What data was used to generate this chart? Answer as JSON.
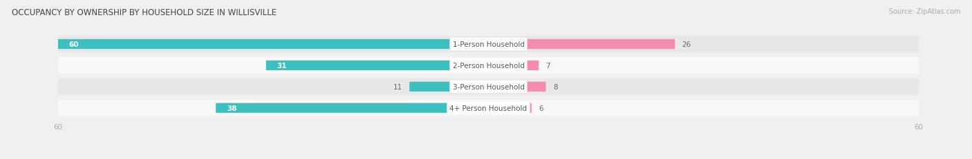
{
  "title": "OCCUPANCY BY OWNERSHIP BY HOUSEHOLD SIZE IN WILLISVILLE",
  "source": "Source: ZipAtlas.com",
  "categories": [
    "1-Person Household",
    "2-Person Household",
    "3-Person Household",
    "4+ Person Household"
  ],
  "owner_values": [
    60,
    31,
    11,
    38
  ],
  "renter_values": [
    26,
    7,
    8,
    6
  ],
  "owner_color": "#3DBFBF",
  "renter_color": "#F48CB0",
  "axis_max": 60,
  "label_color": "#555555",
  "bg_color": "#f0f0f0",
  "row_bg_colors": [
    "#e8e8e8",
    "#f8f8f8",
    "#e8e8e8",
    "#f8f8f8"
  ],
  "title_color": "#444444",
  "value_label_color_inside": "#ffffff",
  "value_label_color_outside": "#666666",
  "axis_label_color": "#aaaaaa",
  "center_label_bg": "#ffffff"
}
